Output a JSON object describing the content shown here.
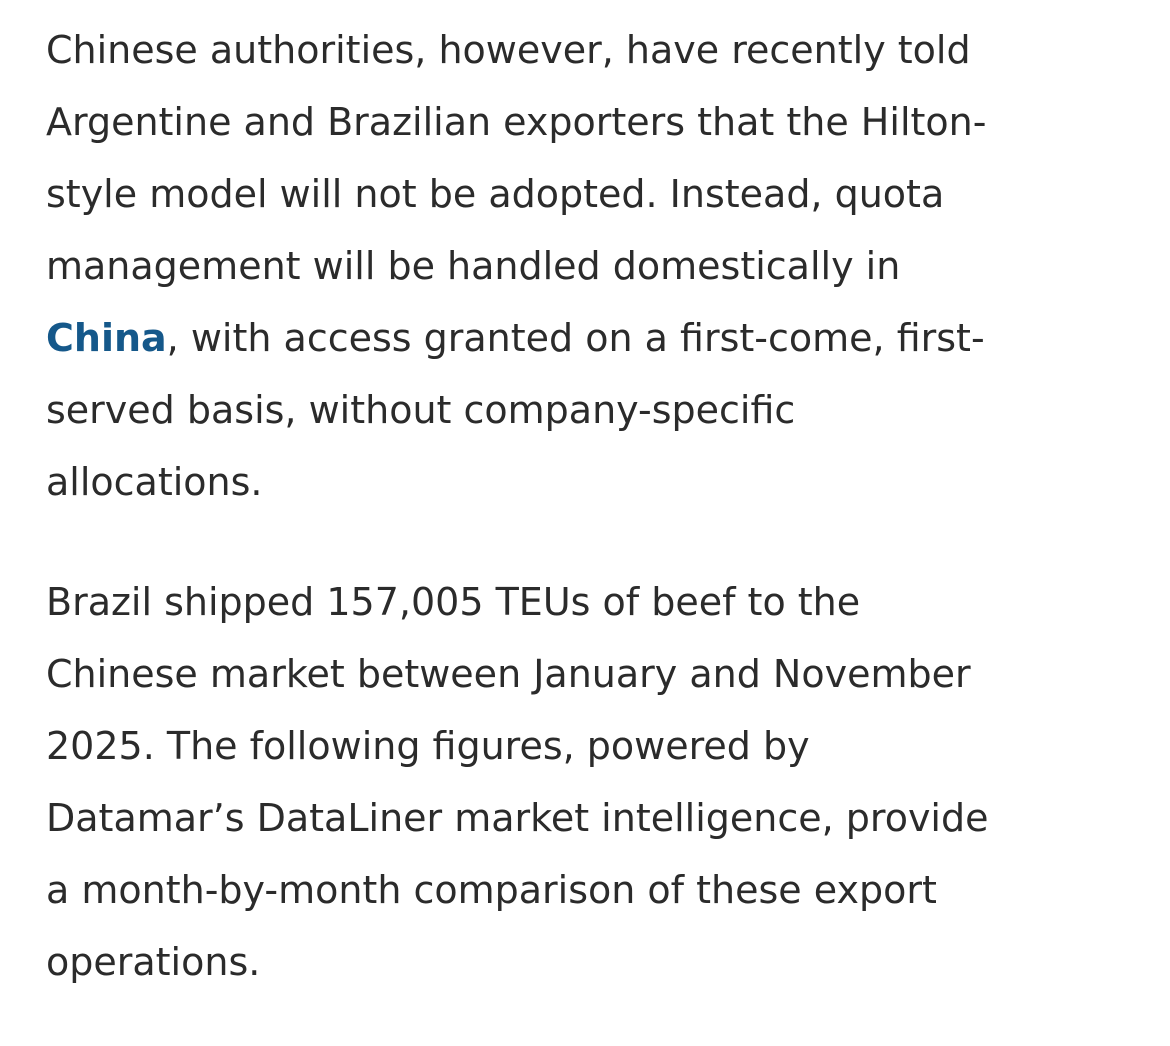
{
  "paragraphs": [
    {
      "lines": [
        "Chinese authorities, however, have recently told",
        "Argentine and Brazilian exporters that the Hilton-",
        "style model will not be adopted. Instead, quota",
        "management will be handled domestically in"
      ],
      "link_text": "China",
      "after_link": ", with access granted on a first-come, first-",
      "tail_lines": [
        "served basis, without company-specific",
        "allocations."
      ]
    },
    {
      "lines": [
        "Brazil shipped 157,005 TEUs of beef to the",
        "Chinese market between January and November",
        "2025. The following figures, powered by",
        "Datamar’s DataLiner market intelligence, provide",
        "a month-by-month comparison of these export",
        "operations."
      ]
    }
  ],
  "colors": {
    "text": "#2b2b2b",
    "link": "#15588a"
  }
}
